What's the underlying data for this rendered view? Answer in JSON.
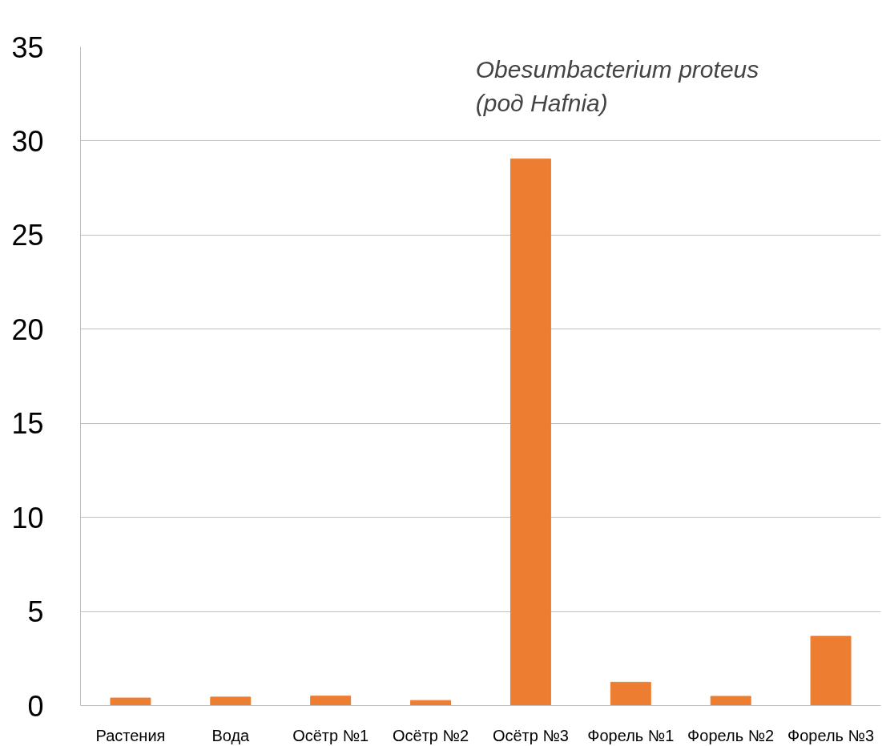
{
  "chart_data": {
    "type": "bar",
    "title": "Obesumbacterium proteus\n (род Hafnia)",
    "categories": [
      "Растения",
      "Вода",
      "Осётр №1",
      "Осётр №2",
      "Осётр №3",
      "Форель №1",
      "Форель №2",
      "Форель №3"
    ],
    "values": [
      0.4,
      0.45,
      0.5,
      0.27,
      29.05,
      1.24,
      0.49,
      3.68
    ],
    "color": "#ed7d31",
    "ylim": [
      0,
      35
    ],
    "yticks": [
      0,
      5,
      10,
      15,
      20,
      25,
      30,
      35
    ],
    "grid": "y"
  }
}
